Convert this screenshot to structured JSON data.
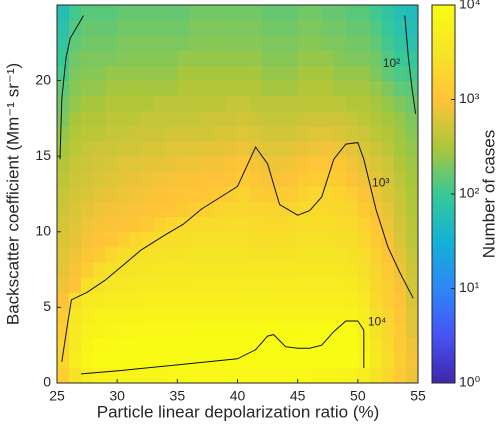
{
  "chart_data": {
    "type": "heatmap",
    "xlabel": "Particle linear depolarization ratio (%)",
    "ylabel": "Backscatter coefficient (Mm⁻¹ sr⁻¹)",
    "colorbar_label": "Number of cases",
    "colormap": "parula",
    "color_log": true,
    "xbins": [
      25,
      26,
      27,
      28,
      29,
      30,
      31,
      32,
      33,
      34,
      35,
      36,
      37,
      38,
      39,
      40,
      41,
      42,
      43,
      44,
      45,
      46,
      47,
      48,
      49,
      50,
      51,
      52,
      53,
      54,
      55
    ],
    "ybins": [
      0,
      1,
      2,
      3,
      4,
      5,
      6,
      7,
      8,
      9,
      10,
      11,
      12,
      13,
      14,
      15,
      16,
      17,
      18,
      19,
      20,
      21,
      22,
      23,
      24,
      25
    ],
    "xlim": [
      25,
      55
    ],
    "ylim": [
      0,
      25
    ],
    "xticks": [
      25,
      30,
      35,
      40,
      45,
      50,
      55
    ],
    "yticks": [
      0,
      5,
      10,
      15,
      20
    ],
    "clim": [
      1,
      10000
    ],
    "cticks": [
      {
        "value": 1,
        "label": "10⁰"
      },
      {
        "value": 10,
        "label": "10¹"
      },
      {
        "value": 100,
        "label": "10²"
      },
      {
        "value": 1000,
        "label": "10³"
      },
      {
        "value": 10000,
        "label": "10⁴"
      }
    ],
    "values": [
      [
        1500,
        3000,
        5000,
        6000,
        7000,
        7000,
        7000,
        7500,
        7500,
        8000,
        8000,
        8000,
        8000,
        8000,
        8000,
        8000,
        8000,
        8000,
        8000,
        8000,
        8000,
        7500,
        7500,
        7000,
        6000,
        5000,
        3000,
        2000,
        1200,
        800
      ],
      [
        2000,
        5000,
        8000,
        10000,
        11000,
        11000,
        12000,
        12000,
        12000,
        12000,
        12000,
        12000,
        12000,
        12000,
        12000,
        12000,
        12000,
        12000,
        12000,
        12000,
        12000,
        12000,
        11000,
        11000,
        11000,
        8000,
        4000,
        2500,
        1500,
        900
      ],
      [
        1800,
        4500,
        7000,
        8500,
        9000,
        9500,
        10000,
        10000,
        10000,
        10000,
        10000,
        10000,
        10000,
        10000,
        10000,
        10500,
        11000,
        11000,
        11000,
        11000,
        11000,
        11000,
        11000,
        11000,
        11000,
        7000,
        3500,
        2200,
        1300,
        800
      ],
      [
        1500,
        4000,
        6000,
        7000,
        7500,
        8000,
        8000,
        8500,
        8500,
        8500,
        8500,
        9000,
        9000,
        9000,
        9000,
        9000,
        9000,
        9500,
        9000,
        9000,
        9000,
        9500,
        10000,
        10500,
        10500,
        6000,
        3000,
        2000,
        1200,
        700
      ],
      [
        1300,
        3500,
        5000,
        6000,
        6000,
        6500,
        6500,
        7000,
        7000,
        7000,
        7000,
        7000,
        7000,
        7000,
        7000,
        7000,
        7000,
        7000,
        7000,
        7000,
        7000,
        7000,
        7000,
        7000,
        7000,
        5000,
        2500,
        1800,
        1100,
        650
      ],
      [
        1000,
        2500,
        4000,
        4500,
        5000,
        5000,
        5000,
        5500,
        5500,
        5500,
        5500,
        5500,
        5500,
        5500,
        5500,
        5500,
        5500,
        5500,
        5500,
        5500,
        5500,
        5500,
        5500,
        5500,
        5000,
        4000,
        2200,
        1500,
        1000,
        600
      ],
      [
        800,
        1000,
        2800,
        3000,
        3500,
        3800,
        4000,
        4000,
        4200,
        4200,
        4200,
        4300,
        4300,
        4300,
        4300,
        4300,
        4300,
        4300,
        4300,
        4300,
        4400,
        4400,
        4400,
        4400,
        4000,
        3300,
        2000,
        1400,
        900,
        550
      ],
      [
        700,
        900,
        1500,
        2500,
        2800,
        3000,
        3200,
        3300,
        3400,
        3500,
        3500,
        3600,
        3600,
        3600,
        3600,
        3600,
        3600,
        3600,
        3600,
        3600,
        3700,
        3700,
        3700,
        3600,
        3300,
        2800,
        1800,
        1200,
        800,
        500
      ],
      [
        650,
        800,
        1100,
        1300,
        2000,
        2400,
        2600,
        2800,
        2900,
        3000,
        3000,
        3100,
        3100,
        3100,
        3100,
        3100,
        3000,
        3000,
        3000,
        3000,
        3200,
        3200,
        3200,
        3100,
        2800,
        2400,
        1600,
        1000,
        700,
        450
      ],
      [
        600,
        700,
        900,
        1000,
        1100,
        1500,
        2000,
        2300,
        2500,
        2600,
        2600,
        2700,
        2700,
        2700,
        2700,
        2700,
        2600,
        2600,
        2600,
        2600,
        2800,
        2800,
        2800,
        2600,
        2400,
        2000,
        1200,
        900,
        600,
        400
      ],
      [
        550,
        650,
        800,
        900,
        950,
        1000,
        1050,
        1300,
        1600,
        2000,
        2200,
        2300,
        2300,
        2300,
        2400,
        2400,
        2200,
        2200,
        2200,
        2200,
        2500,
        2500,
        2500,
        2300,
        2100,
        1700,
        1050,
        800,
        550,
        380
      ],
      [
        500,
        600,
        700,
        800,
        850,
        900,
        950,
        1000,
        1050,
        1100,
        1300,
        1500,
        1600,
        1800,
        2000,
        2000,
        1800,
        1700,
        1700,
        1800,
        2100,
        2200,
        2200,
        2000,
        1800,
        1300,
        900,
        700,
        500,
        350
      ],
      [
        450,
        550,
        600,
        700,
        750,
        800,
        850,
        900,
        950,
        1000,
        1050,
        1050,
        1100,
        1200,
        1500,
        1700,
        1400,
        1300,
        1300,
        1400,
        1700,
        1900,
        1900,
        1700,
        1500,
        1000,
        800,
        600,
        450,
        320
      ],
      [
        400,
        500,
        550,
        600,
        650,
        700,
        750,
        800,
        850,
        900,
        950,
        950,
        1000,
        1000,
        1100,
        1300,
        1050,
        950,
        950,
        1000,
        1200,
        1400,
        1400,
        1300,
        1000,
        800,
        700,
        550,
        400,
        300
      ],
      [
        350,
        450,
        500,
        550,
        600,
        650,
        650,
        700,
        700,
        750,
        800,
        800,
        850,
        850,
        950,
        1100,
        900,
        800,
        800,
        850,
        950,
        1100,
        1100,
        1100,
        850,
        700,
        600,
        500,
        350,
        280
      ],
      [
        300,
        400,
        450,
        500,
        500,
        550,
        550,
        600,
        600,
        650,
        650,
        650,
        700,
        700,
        750,
        800,
        700,
        650,
        650,
        700,
        750,
        800,
        850,
        800,
        700,
        600,
        500,
        400,
        300,
        250
      ],
      [
        250,
        350,
        400,
        400,
        450,
        450,
        500,
        500,
        500,
        550,
        550,
        550,
        550,
        600,
        600,
        650,
        600,
        550,
        550,
        550,
        600,
        650,
        650,
        600,
        550,
        500,
        400,
        350,
        280,
        220
      ],
      [
        200,
        300,
        350,
        350,
        400,
        400,
        400,
        450,
        450,
        450,
        450,
        450,
        500,
        500,
        500,
        550,
        500,
        450,
        450,
        450,
        500,
        500,
        500,
        500,
        450,
        400,
        350,
        300,
        250,
        200
      ],
      [
        180,
        250,
        300,
        300,
        350,
        350,
        350,
        350,
        400,
        400,
        400,
        400,
        400,
        400,
        450,
        450,
        400,
        400,
        400,
        400,
        400,
        400,
        400,
        400,
        350,
        350,
        300,
        250,
        200,
        170
      ],
      [
        150,
        220,
        250,
        250,
        300,
        300,
        300,
        300,
        300,
        300,
        350,
        350,
        350,
        350,
        350,
        350,
        350,
        300,
        300,
        300,
        350,
        350,
        350,
        300,
        300,
        300,
        250,
        200,
        150,
        140
      ],
      [
        120,
        200,
        220,
        220,
        250,
        250,
        250,
        250,
        250,
        250,
        300,
        300,
        300,
        300,
        300,
        300,
        300,
        250,
        250,
        250,
        300,
        300,
        300,
        250,
        250,
        250,
        200,
        150,
        120,
        110
      ],
      [
        100,
        180,
        200,
        200,
        200,
        220,
        220,
        220,
        220,
        220,
        250,
        250,
        250,
        250,
        250,
        250,
        250,
        220,
        220,
        220,
        250,
        250,
        250,
        220,
        200,
        200,
        180,
        130,
        100,
        90
      ],
      [
        80,
        150,
        180,
        180,
        180,
        200,
        200,
        200,
        200,
        200,
        200,
        220,
        220,
        220,
        220,
        220,
        220,
        200,
        200,
        200,
        220,
        220,
        200,
        200,
        180,
        180,
        150,
        110,
        80,
        70
      ],
      [
        70,
        130,
        160,
        160,
        160,
        180,
        180,
        180,
        180,
        180,
        180,
        200,
        200,
        200,
        200,
        200,
        200,
        180,
        180,
        180,
        200,
        200,
        180,
        180,
        160,
        160,
        130,
        90,
        70,
        60
      ],
      [
        60,
        110,
        140,
        140,
        140,
        160,
        160,
        160,
        160,
        160,
        160,
        180,
        180,
        180,
        180,
        180,
        180,
        160,
        160,
        160,
        180,
        180,
        160,
        160,
        140,
        140,
        110,
        80,
        60,
        50
      ]
    ],
    "contours": [
      {
        "level": 100,
        "label": "10²",
        "label_at": [
          52.8,
          21.1
        ],
        "x": [
          25.25,
          25.4,
          25.75,
          26.1,
          27.2,
          null,
          53.9,
          54.2,
          54.5,
          54.8
        ],
        "y": [
          14.8,
          18.8,
          21.5,
          22.8,
          24.3,
          null,
          24.3,
          21.5,
          19.5,
          17.8
        ]
      },
      {
        "level": 1000,
        "label": "10³",
        "label_at": [
          51.9,
          13.2
        ],
        "x": [
          25.4,
          25.8,
          26.2,
          27.5,
          29,
          30.5,
          32,
          34,
          35.5,
          37,
          39,
          40,
          41.5,
          42.5,
          43.5,
          45,
          46,
          47,
          48,
          49,
          50,
          50.5,
          51.5,
          52.5,
          53.5,
          54.6
        ],
        "y": [
          1.4,
          3.5,
          5.5,
          6,
          6.8,
          7.8,
          8.8,
          9.8,
          10.5,
          11.5,
          12.5,
          13,
          15.6,
          14.5,
          11.8,
          11.1,
          11.4,
          12.3,
          14.8,
          15.8,
          15.9,
          14.8,
          11.5,
          9,
          7.3,
          5.6
        ]
      },
      {
        "level": 10000,
        "label": "10⁴",
        "label_at": [
          51.6,
          4.0
        ],
        "x": [
          27,
          30,
          35,
          40,
          41.5,
          42.5,
          43,
          44,
          45,
          46,
          47,
          48,
          49,
          50,
          50.5,
          50.5
        ],
        "y": [
          0.6,
          0.8,
          1.2,
          1.6,
          2.2,
          3.1,
          3.2,
          2.4,
          2.3,
          2.3,
          2.5,
          3.4,
          4.1,
          4.1,
          3.5,
          1.0
        ]
      }
    ]
  }
}
